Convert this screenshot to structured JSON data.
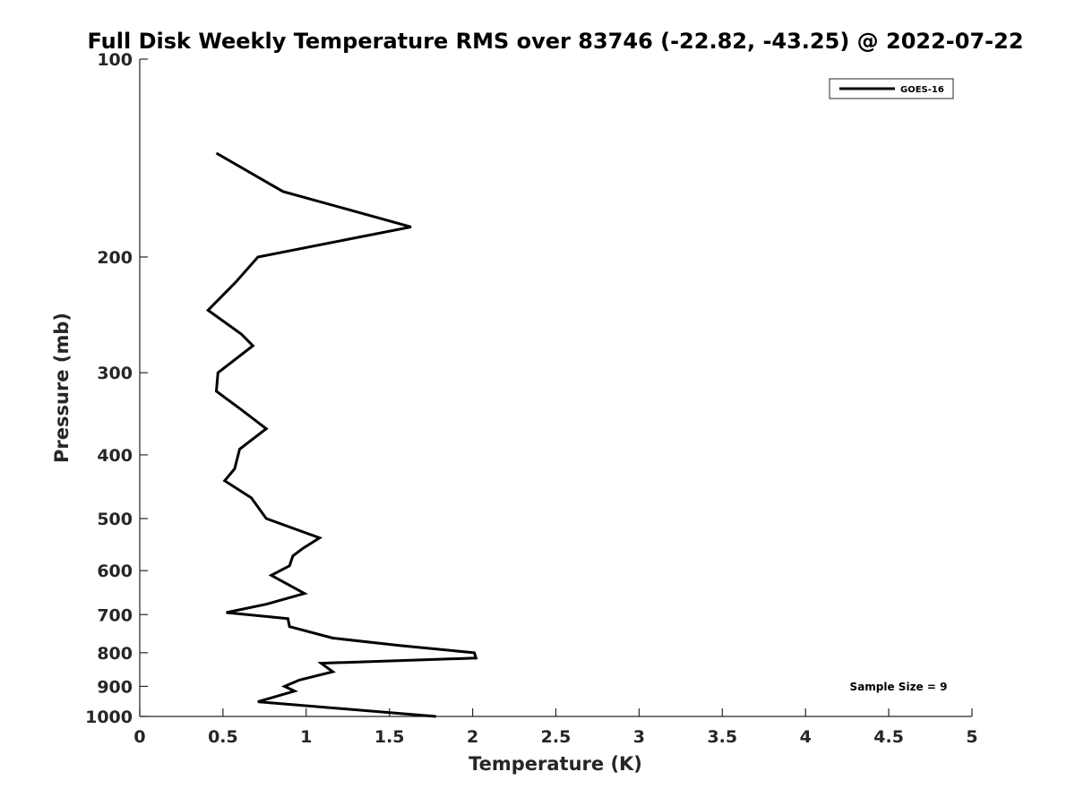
{
  "chart_data": {
    "type": "line",
    "title": "Full Disk Weekly Temperature RMS over 83746 (-22.82, -43.25) @ 2022-07-22",
    "xlabel": "Temperature (K)",
    "ylabel": "Pressure (mb)",
    "xlim": [
      0,
      5
    ],
    "ylim": [
      100,
      1000
    ],
    "y_scale": "log",
    "y_reversed": true,
    "x_ticks": [
      0,
      0.5,
      1,
      1.5,
      2,
      2.5,
      3,
      3.5,
      4,
      4.5,
      5
    ],
    "y_ticks": [
      100,
      200,
      300,
      400,
      500,
      600,
      700,
      800,
      900,
      1000
    ],
    "grid": false,
    "legend": {
      "position": "top-right",
      "entries": [
        "GOES-16"
      ]
    },
    "annotation": "Sample Size = 9",
    "series": [
      {
        "name": "GOES-16",
        "color": "#000000",
        "points": [
          [
            0.46,
            139
          ],
          [
            0.86,
            159
          ],
          [
            1.63,
            180
          ],
          [
            0.71,
            200
          ],
          [
            0.58,
            218
          ],
          [
            0.41,
            241
          ],
          [
            0.61,
            262
          ],
          [
            0.68,
            273
          ],
          [
            0.47,
            300
          ],
          [
            0.46,
            320
          ],
          [
            0.6,
            340
          ],
          [
            0.76,
            365
          ],
          [
            0.6,
            392
          ],
          [
            0.57,
            420
          ],
          [
            0.51,
            438
          ],
          [
            0.67,
            465
          ],
          [
            0.76,
            500
          ],
          [
            1.08,
            535
          ],
          [
            0.98,
            555
          ],
          [
            0.92,
            570
          ],
          [
            0.9,
            590
          ],
          [
            0.79,
            610
          ],
          [
            0.99,
            650
          ],
          [
            0.76,
            675
          ],
          [
            0.52,
            695
          ],
          [
            0.89,
            710
          ],
          [
            0.9,
            730
          ],
          [
            1.16,
            760
          ],
          [
            1.56,
            780
          ],
          [
            2.01,
            800
          ],
          [
            2.02,
            815
          ],
          [
            1.09,
            830
          ],
          [
            1.16,
            855
          ],
          [
            0.96,
            880
          ],
          [
            0.87,
            900
          ],
          [
            0.93,
            915
          ],
          [
            0.71,
            950
          ],
          [
            1.78,
            1000
          ]
        ]
      }
    ]
  }
}
